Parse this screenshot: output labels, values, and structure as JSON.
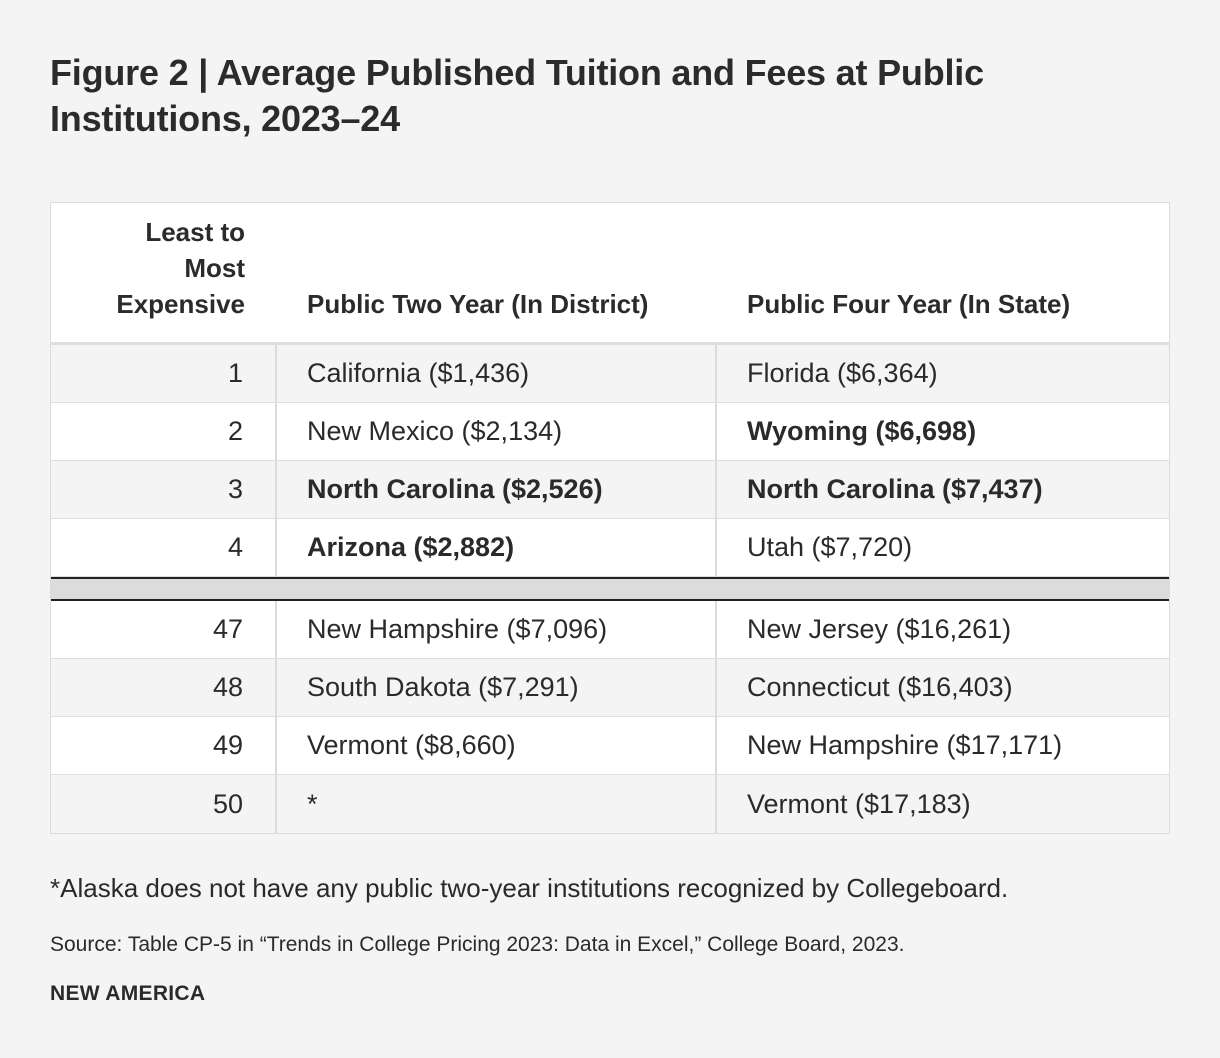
{
  "title": "Figure 2 | Average Published Tuition and Fees at Public Institutions, 2023–24",
  "table": {
    "headers": {
      "rank": "Least to Most Expensive",
      "two_year": "Public Two Year (In District)",
      "four_year": "Public Four Year (In State)"
    },
    "top_rows": [
      {
        "rank": "1",
        "two_year": "California ($1,436)",
        "two_year_bold": false,
        "four_year": "Florida ($6,364)",
        "four_year_bold": false
      },
      {
        "rank": "2",
        "two_year": "New Mexico ($2,134)",
        "two_year_bold": false,
        "four_year": "Wyoming ($6,698)",
        "four_year_bold": true
      },
      {
        "rank": "3",
        "two_year": "North Carolina ($2,526)",
        "two_year_bold": true,
        "four_year": "North Carolina ($7,437)",
        "four_year_bold": true
      },
      {
        "rank": "4",
        "two_year": "Arizona ($2,882)",
        "two_year_bold": true,
        "four_year": "Utah ($7,720)",
        "four_year_bold": false
      }
    ],
    "bottom_rows": [
      {
        "rank": "47",
        "two_year": "New Hampshire ($7,096)",
        "two_year_bold": false,
        "four_year": "New Jersey ($16,261)",
        "four_year_bold": false
      },
      {
        "rank": "48",
        "two_year": "South Dakota ($7,291)",
        "two_year_bold": false,
        "four_year": "Connecticut ($16,403)",
        "four_year_bold": false
      },
      {
        "rank": "49",
        "two_year": "Vermont ($8,660)",
        "two_year_bold": false,
        "four_year": "New Hampshire ($17,171)",
        "four_year_bold": false
      },
      {
        "rank": "50",
        "two_year": "*",
        "two_year_bold": false,
        "four_year": "Vermont ($17,183)",
        "four_year_bold": false
      }
    ]
  },
  "footnote": "*Alaska does not have any public two-year institutions recognized by Collegeboard.",
  "source": "Source: Table CP-5 in “Trends in College Pricing 2023: Data in Excel,” College Board, 2023.",
  "brand": "NEW AMERICA",
  "colors": {
    "background": "#f4f4f4",
    "row_alt": "#f4f4f4",
    "row_white": "#ffffff",
    "divider": "#dcdcdc",
    "text": "#2a2a2a"
  }
}
